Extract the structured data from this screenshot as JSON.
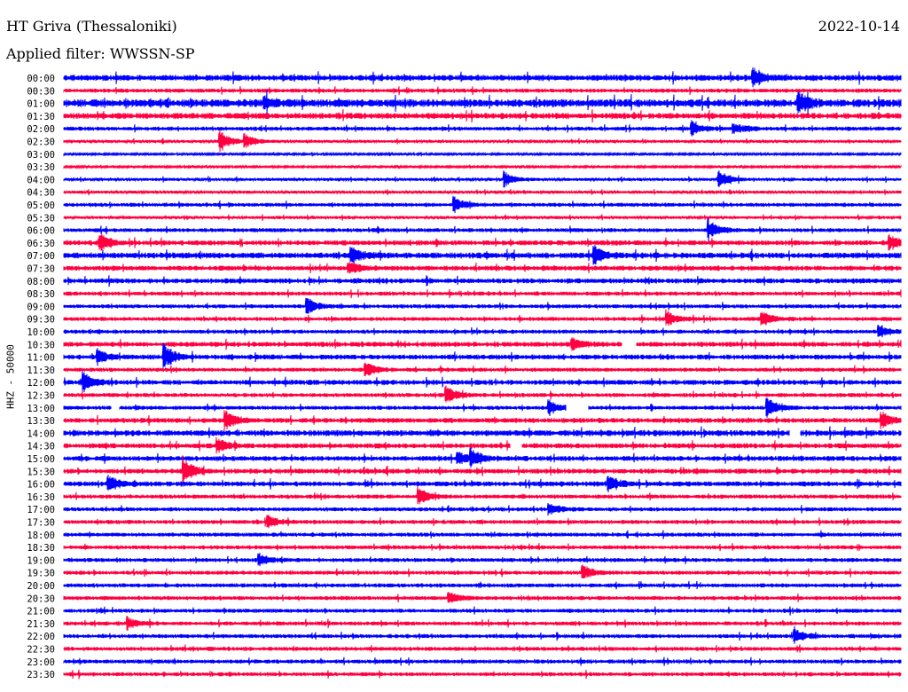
{
  "header": {
    "station": "HT Griva (Thessaloniki)",
    "date": "2022-10-14",
    "filter": "Applied filter: WWSSN-SP"
  },
  "chart_data": {
    "type": "helicorder",
    "title": "HT Griva (Thessaloniki)",
    "ylabel": "HHZ - 50000",
    "minutes_per_line": 30,
    "colors": [
      "#0000ff",
      "#ff0040"
    ],
    "row_labels": [
      "00:00",
      "00:30",
      "01:00",
      "01:30",
      "02:00",
      "02:30",
      "03:00",
      "03:30",
      "04:00",
      "04:30",
      "05:00",
      "05:30",
      "06:00",
      "06:30",
      "07:00",
      "07:30",
      "08:00",
      "08:30",
      "09:00",
      "09:30",
      "10:00",
      "10:30",
      "11:00",
      "11:30",
      "12:00",
      "12:30",
      "13:00",
      "13:30",
      "14:00",
      "14:30",
      "15:00",
      "15:30",
      "16:00",
      "16:30",
      "17:00",
      "17:30",
      "18:00",
      "18:30",
      "19:00",
      "19:30",
      "20:00",
      "20:30",
      "21:00",
      "21:30",
      "22:00",
      "22:30",
      "23:00",
      "23:30"
    ],
    "noise_level": [
      3,
      2,
      4,
      3,
      2,
      1.5,
      1,
      1,
      1.5,
      1.5,
      2,
      1.5,
      2,
      2.5,
      3,
      2.5,
      2.5,
      2,
      2,
      2,
      2,
      2.5,
      2.5,
      2,
      2.5,
      2,
      2,
      2.5,
      3,
      2.5,
      2.5,
      2.5,
      2.5,
      2,
      2,
      2,
      2,
      2,
      2,
      2,
      2,
      2,
      2,
      2,
      2,
      2,
      2,
      2
    ],
    "events": [
      {
        "row": 0,
        "minute": 24.7,
        "amp": 10
      },
      {
        "row": 2,
        "minute": 7.2,
        "amp": 6
      },
      {
        "row": 2,
        "minute": 26.3,
        "amp": 12
      },
      {
        "row": 4,
        "minute": 22.5,
        "amp": 8
      },
      {
        "row": 4,
        "minute": 24.0,
        "amp": 6
      },
      {
        "row": 5,
        "minute": 5.6,
        "amp": 12
      },
      {
        "row": 5,
        "minute": 6.5,
        "amp": 8
      },
      {
        "row": 8,
        "minute": 15.8,
        "amp": 8
      },
      {
        "row": 8,
        "minute": 23.5,
        "amp": 10
      },
      {
        "row": 10,
        "minute": 14.0,
        "amp": 8
      },
      {
        "row": 12,
        "minute": 23.1,
        "amp": 12
      },
      {
        "row": 13,
        "minute": 1.3,
        "amp": 10
      },
      {
        "row": 13,
        "minute": 29.6,
        "amp": 8
      },
      {
        "row": 14,
        "minute": 19.0,
        "amp": 10
      },
      {
        "row": 14,
        "minute": 10.3,
        "amp": 8
      },
      {
        "row": 15,
        "minute": 10.2,
        "amp": 8
      },
      {
        "row": 18,
        "minute": 8.7,
        "amp": 9
      },
      {
        "row": 19,
        "minute": 21.6,
        "amp": 9
      },
      {
        "row": 19,
        "minute": 25.0,
        "amp": 9
      },
      {
        "row": 20,
        "minute": 29.2,
        "amp": 7
      },
      {
        "row": 21,
        "minute": 18.2,
        "amp": 8
      },
      {
        "row": 22,
        "minute": 3.6,
        "amp": 14
      },
      {
        "row": 22,
        "minute": 1.2,
        "amp": 8
      },
      {
        "row": 23,
        "minute": 10.8,
        "amp": 9
      },
      {
        "row": 24,
        "minute": 0.7,
        "amp": 11
      },
      {
        "row": 25,
        "minute": 13.7,
        "amp": 10
      },
      {
        "row": 26,
        "minute": 17.4,
        "amp": 8
      },
      {
        "row": 26,
        "minute": 25.2,
        "amp": 12
      },
      {
        "row": 27,
        "minute": 5.8,
        "amp": 10
      },
      {
        "row": 27,
        "minute": 29.3,
        "amp": 9
      },
      {
        "row": 29,
        "minute": 5.5,
        "amp": 8
      },
      {
        "row": 30,
        "minute": 14.1,
        "amp": 8
      },
      {
        "row": 30,
        "minute": 14.6,
        "amp": 9
      },
      {
        "row": 31,
        "minute": 4.3,
        "amp": 14
      },
      {
        "row": 32,
        "minute": 1.6,
        "amp": 9
      },
      {
        "row": 32,
        "minute": 19.5,
        "amp": 9
      },
      {
        "row": 33,
        "minute": 12.7,
        "amp": 10
      },
      {
        "row": 34,
        "minute": 17.4,
        "amp": 6
      },
      {
        "row": 35,
        "minute": 7.3,
        "amp": 7
      },
      {
        "row": 38,
        "minute": 7.0,
        "amp": 7
      },
      {
        "row": 39,
        "minute": 18.6,
        "amp": 9
      },
      {
        "row": 41,
        "minute": 13.8,
        "amp": 7
      },
      {
        "row": 43,
        "minute": 2.3,
        "amp": 7
      },
      {
        "row": 44,
        "minute": 26.2,
        "amp": 7
      }
    ],
    "gaps": [
      {
        "row": 21,
        "from": 20.0,
        "to": 20.5
      },
      {
        "row": 26,
        "from": 1.7,
        "to": 2.0
      },
      {
        "row": 26,
        "from": 18.0,
        "to": 18.8
      },
      {
        "row": 29,
        "from": 16.0,
        "to": 16.4
      },
      {
        "row": 28,
        "from": 26.0,
        "to": 26.4
      }
    ]
  }
}
